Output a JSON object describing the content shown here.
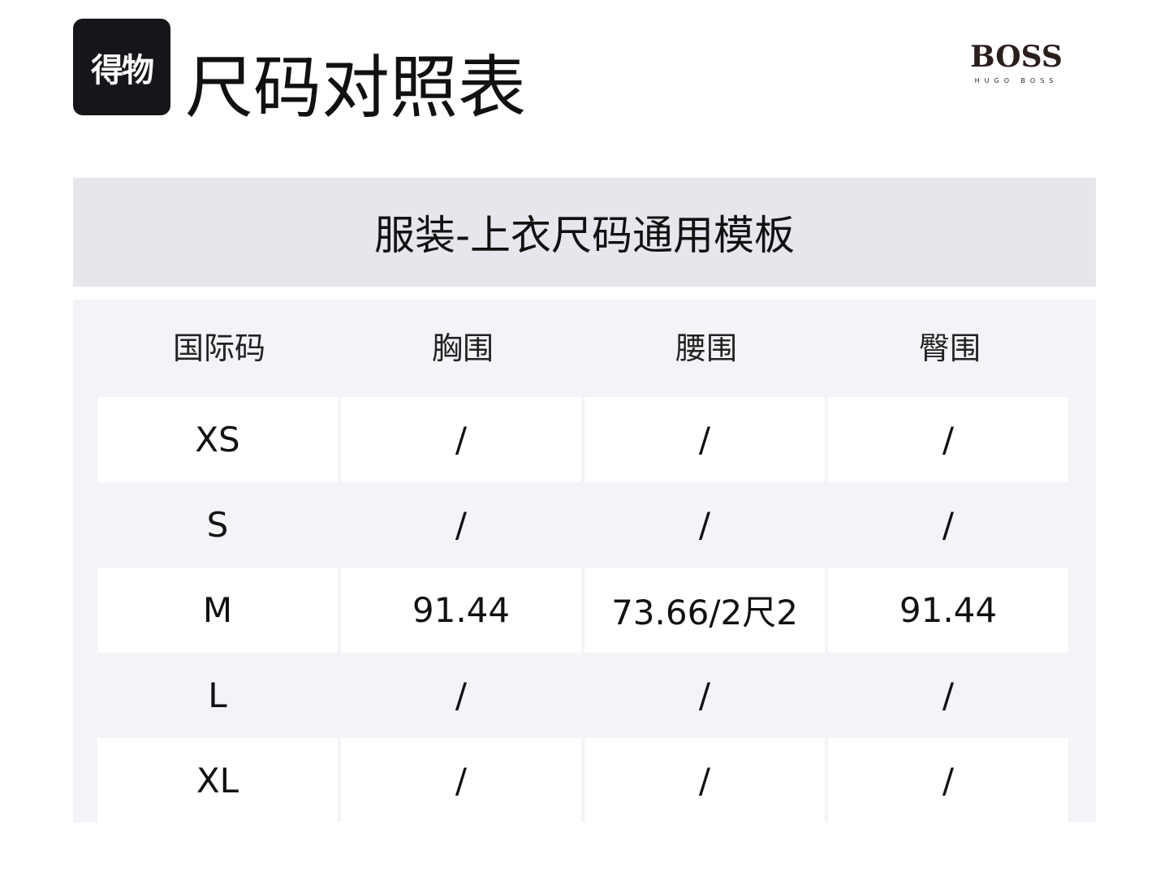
{
  "logo": {
    "text": "得物"
  },
  "title": "尺码对照表",
  "brand": {
    "name": "BOSS",
    "sub": "HUGO BOSS"
  },
  "band_title": "服装-上衣尺码通用模板",
  "table": {
    "headers": [
      "国际码",
      "胸围",
      "腰围",
      "臀围"
    ],
    "rows": [
      [
        "XS",
        "/",
        "/",
        "/"
      ],
      [
        "S",
        "/",
        "/",
        "/"
      ],
      [
        "M",
        "91.44",
        "73.66/2尺2",
        "91.44"
      ],
      [
        "L",
        "/",
        "/",
        "/"
      ],
      [
        "XL",
        "/",
        "/",
        "/"
      ]
    ]
  }
}
